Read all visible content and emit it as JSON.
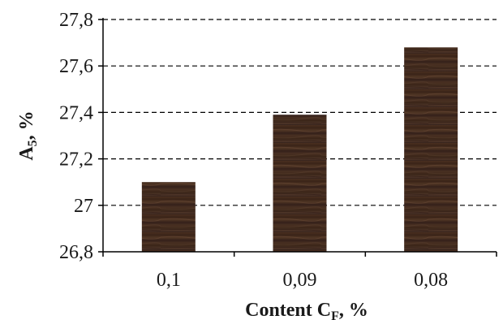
{
  "chart_data": {
    "type": "bar",
    "categories": [
      "0,1",
      "0,09",
      "0,08"
    ],
    "values": [
      27.1,
      27.39,
      27.68
    ],
    "ylim": [
      26.8,
      27.8
    ],
    "yticks": [
      26.8,
      27.0,
      27.2,
      27.4,
      27.6,
      27.8
    ],
    "ytick_labels": [
      "26,8",
      "27",
      "27,2",
      "27,4",
      "27,6",
      "27,8"
    ],
    "xlabel": {
      "main": "Content C",
      "sub": "F",
      "suffix": ", %"
    },
    "ylabel": {
      "main": "A",
      "sub": "5",
      "suffix": ", %"
    },
    "grid": {
      "y": true,
      "style": "dashed"
    },
    "legend": "none",
    "colors": {
      "bar": "#3b2418",
      "bar_stripe": "#5a3d2a",
      "grid": "#000000",
      "axis": "#000000"
    }
  }
}
